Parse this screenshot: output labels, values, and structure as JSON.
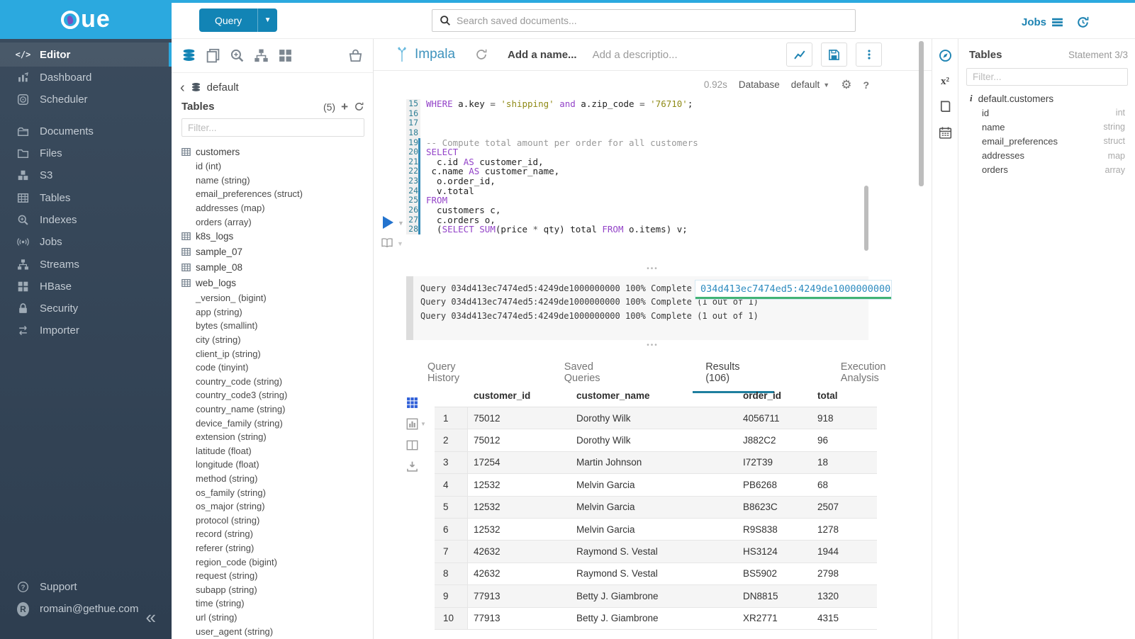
{
  "colors": {
    "brand_cyan": "#2BA9DF",
    "primary_blue": "#1284B5",
    "link_blue": "#1D83B2",
    "tab_underline": "#1F7F9F",
    "log_green": "#41B375",
    "grid_blue": "#2E5ED8"
  },
  "topbar": {
    "query_button": "Query",
    "search_placeholder": "Search saved documents...",
    "jobs_label": "Jobs"
  },
  "sidebar": {
    "items": [
      {
        "label": "Editor",
        "icon": "code",
        "active": true
      },
      {
        "label": "Dashboard",
        "icon": "dashboard"
      },
      {
        "label": "Scheduler",
        "icon": "scheduler"
      },
      {
        "label": "Documents",
        "icon": "documents",
        "group_start": true
      },
      {
        "label": "Files",
        "icon": "files"
      },
      {
        "label": "S3",
        "icon": "s3"
      },
      {
        "label": "Tables",
        "icon": "tables"
      },
      {
        "label": "Indexes",
        "icon": "indexes"
      },
      {
        "label": "Jobs",
        "icon": "jobs"
      },
      {
        "label": "Streams",
        "icon": "streams"
      },
      {
        "label": "HBase",
        "icon": "hbase"
      },
      {
        "label": "Security",
        "icon": "security"
      },
      {
        "label": "Importer",
        "icon": "importer"
      }
    ],
    "support_label": "Support",
    "user_email": "romain@gethue.com",
    "user_initial": "R"
  },
  "assist": {
    "database": "default",
    "tables_label": "Tables",
    "tables_count": "(5)",
    "filter_placeholder": "Filter...",
    "tables": [
      {
        "name": "customers",
        "columns": [
          "id (int)",
          "name (string)",
          "email_preferences (struct)",
          "addresses (map)",
          "orders (array)"
        ]
      },
      {
        "name": "k8s_logs",
        "columns": []
      },
      {
        "name": "sample_07",
        "columns": []
      },
      {
        "name": "sample_08",
        "columns": []
      },
      {
        "name": "web_logs",
        "columns": [
          "_version_ (bigint)",
          "app (string)",
          "bytes (smallint)",
          "city (string)",
          "client_ip (string)",
          "code (tinyint)",
          "country_code (string)",
          "country_code3 (string)",
          "country_name (string)",
          "device_family (string)",
          "extension (string)",
          "latitude (float)",
          "longitude (float)",
          "method (string)",
          "os_family (string)",
          "os_major (string)",
          "protocol (string)",
          "record (string)",
          "referer (string)",
          "region_code (bigint)",
          "request (string)",
          "subapp (string)",
          "time (string)",
          "url (string)",
          "user_agent (string)"
        ]
      }
    ]
  },
  "editor": {
    "engine": "Impala",
    "name_placeholder": "Add a name...",
    "description_placeholder": "Add a descriptio...",
    "duration": "0.92s",
    "database_label": "Database",
    "database_value": "default",
    "code_lines": [
      {
        "n": "15",
        "marked": false,
        "tokens": [
          [
            "k",
            "WHERE"
          ],
          [
            "p",
            " a.key "
          ],
          [
            "o",
            "="
          ],
          [
            "p",
            " "
          ],
          [
            "s",
            "'shipping'"
          ],
          [
            "p",
            " "
          ],
          [
            "k",
            "and"
          ],
          [
            "p",
            " a.zip_code "
          ],
          [
            "o",
            "="
          ],
          [
            "p",
            " "
          ],
          [
            "s",
            "'76710'"
          ],
          [
            "p",
            ";"
          ]
        ]
      },
      {
        "n": "16",
        "marked": false,
        "tokens": []
      },
      {
        "n": "17",
        "marked": false,
        "tokens": []
      },
      {
        "n": "18",
        "marked": false,
        "tokens": []
      },
      {
        "n": "19",
        "marked": true,
        "tokens": [
          [
            "c",
            "-- Compute total amount per order for all customers"
          ]
        ]
      },
      {
        "n": "20",
        "marked": true,
        "tokens": [
          [
            "k",
            "SELECT"
          ]
        ]
      },
      {
        "n": "21",
        "marked": true,
        "tokens": [
          [
            "p",
            "  c.id "
          ],
          [
            "k",
            "AS"
          ],
          [
            "p",
            " customer_id,"
          ]
        ]
      },
      {
        "n": "22",
        "marked": true,
        "tokens": [
          [
            "p",
            " c.name "
          ],
          [
            "k",
            "AS"
          ],
          [
            "p",
            " customer_name,"
          ]
        ]
      },
      {
        "n": "23",
        "marked": true,
        "tokens": [
          [
            "p",
            "  o.order_id,"
          ]
        ]
      },
      {
        "n": "24",
        "marked": true,
        "tokens": [
          [
            "p",
            "  v.total"
          ]
        ]
      },
      {
        "n": "25",
        "marked": true,
        "tokens": [
          [
            "k",
            "FROM"
          ]
        ]
      },
      {
        "n": "26",
        "marked": true,
        "tokens": [
          [
            "p",
            "  customers c,"
          ]
        ]
      },
      {
        "n": "27",
        "marked": true,
        "tokens": [
          [
            "p",
            "  c.orders o,"
          ]
        ]
      },
      {
        "n": "28",
        "marked": true,
        "tokens": [
          [
            "p",
            "  ("
          ],
          [
            "k",
            "SELECT"
          ],
          [
            "p",
            " "
          ],
          [
            "k",
            "SUM"
          ],
          [
            "p",
            "(price "
          ],
          [
            "o",
            "*"
          ],
          [
            "p",
            " qty) total "
          ],
          [
            "k",
            "FROM"
          ],
          [
            "p",
            " o.items) v;"
          ]
        ]
      }
    ]
  },
  "logs": {
    "lines": [
      "Query 034d413ec7474ed5:4249de1000000000 100% Complete (1 out of 1)",
      "Query 034d413ec7474ed5:4249de1000000000 100% Complete (1 out of 1)",
      "Query 034d413ec7474ed5:4249de1000000000 100% Complete (1 out of 1)"
    ],
    "overlay_text": "034d413ec7474ed5:4249de1000000000"
  },
  "tabs": {
    "items": [
      "Query History",
      "Saved Queries",
      "Results (106)",
      "Execution Analysis"
    ],
    "active_index": 2
  },
  "results": {
    "columns": [
      "customer_id",
      "customer_name",
      "order_id",
      "total"
    ],
    "rows": [
      [
        "1",
        "75012",
        "Dorothy Wilk",
        "4056711",
        "918"
      ],
      [
        "2",
        "75012",
        "Dorothy Wilk",
        "J882C2",
        "96"
      ],
      [
        "3",
        "17254",
        "Martin Johnson",
        "I72T39",
        "18"
      ],
      [
        "4",
        "12532",
        "Melvin Garcia",
        "PB6268",
        "68"
      ],
      [
        "5",
        "12532",
        "Melvin Garcia",
        "B8623C",
        "2507"
      ],
      [
        "6",
        "12532",
        "Melvin Garcia",
        "R9S838",
        "1278"
      ],
      [
        "7",
        "42632",
        "Raymond S. Vestal",
        "HS3124",
        "1944"
      ],
      [
        "8",
        "42632",
        "Raymond S. Vestal",
        "BS5902",
        "2798"
      ],
      [
        "9",
        "77913",
        "Betty J. Giambrone",
        "DN8815",
        "1320"
      ],
      [
        "10",
        "77913",
        "Betty J. Giambrone",
        "XR2771",
        "4315"
      ]
    ]
  },
  "right_panel": {
    "title": "Tables",
    "statement": "Statement 3/3",
    "filter_placeholder": "Filter...",
    "table_name": "default.customers",
    "columns": [
      {
        "name": "id",
        "type": "int"
      },
      {
        "name": "name",
        "type": "string"
      },
      {
        "name": "email_preferences",
        "type": "struct"
      },
      {
        "name": "addresses",
        "type": "map"
      },
      {
        "name": "orders",
        "type": "array"
      }
    ]
  }
}
